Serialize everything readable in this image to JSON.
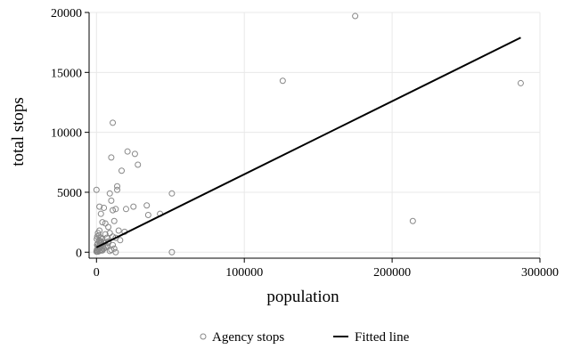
{
  "chart_data": {
    "type": "scatter",
    "title": "",
    "xlabel": "population",
    "ylabel": "total stops",
    "xlim": [
      -5000,
      300000
    ],
    "ylim": [
      -500,
      20000
    ],
    "x_ticks": [
      0,
      100000,
      200000,
      300000
    ],
    "x_tick_labels": [
      "0",
      "100000",
      "200000",
      "300000"
    ],
    "y_ticks": [
      0,
      5000,
      10000,
      15000,
      20000
    ],
    "y_tick_labels": [
      "0",
      "5000",
      "10000",
      "15000",
      "20000"
    ],
    "grid": true,
    "legend_position": "bottom",
    "colors": {
      "markers": "#888888",
      "fitted_line": "#000000",
      "grid": "#e8e8e8",
      "axis": "#000000"
    },
    "series": [
      {
        "name": "Agency stops",
        "kind": "scatter",
        "x": [
          175000,
          126000,
          287000,
          214000,
          51000,
          11000,
          21000,
          26000,
          28000,
          10000,
          17000,
          14000,
          14000,
          0,
          9000,
          2000,
          5000,
          11000,
          25000,
          20000,
          34000,
          43000,
          35000,
          10000,
          13000,
          3000,
          4000,
          6000,
          8000,
          12000,
          15000,
          19000,
          9000,
          11000,
          13000,
          16000,
          6000,
          7000,
          8000,
          5000,
          4000,
          3000,
          2000,
          1500,
          1000,
          500,
          200,
          2500,
          3500,
          4500,
          1200,
          800,
          300,
          600,
          1800,
          2200,
          2800,
          3200,
          700,
          900,
          1400,
          1600,
          400,
          100,
          2000,
          3000,
          5000,
          6000,
          4000,
          1000,
          500,
          0,
          1500,
          2500,
          3500,
          7000,
          51000,
          13000,
          10000,
          12000,
          9000,
          11000,
          8000
        ],
        "y": [
          19700,
          14300,
          14100,
          2600,
          4900,
          10800,
          8400,
          8200,
          7300,
          7900,
          6800,
          5500,
          5200,
          5200,
          4900,
          3800,
          3700,
          3500,
          3800,
          3600,
          3900,
          3200,
          3100,
          4300,
          3600,
          3200,
          2500,
          2400,
          2100,
          2600,
          1800,
          1700,
          1600,
          1300,
          1200,
          1000,
          1500,
          1200,
          900,
          800,
          1100,
          900,
          1800,
          1400,
          1600,
          1300,
          1100,
          700,
          600,
          500,
          400,
          300,
          200,
          200,
          1000,
          900,
          1200,
          800,
          700,
          500,
          300,
          400,
          600,
          100,
          100,
          200,
          300,
          400,
          150,
          50,
          50,
          50,
          250,
          350,
          150,
          500,
          0,
          0,
          200,
          300,
          100,
          600,
          800
        ]
      },
      {
        "name": "Fitted line",
        "kind": "line",
        "x": [
          0,
          287000
        ],
        "y": [
          400,
          17900
        ]
      }
    ]
  }
}
